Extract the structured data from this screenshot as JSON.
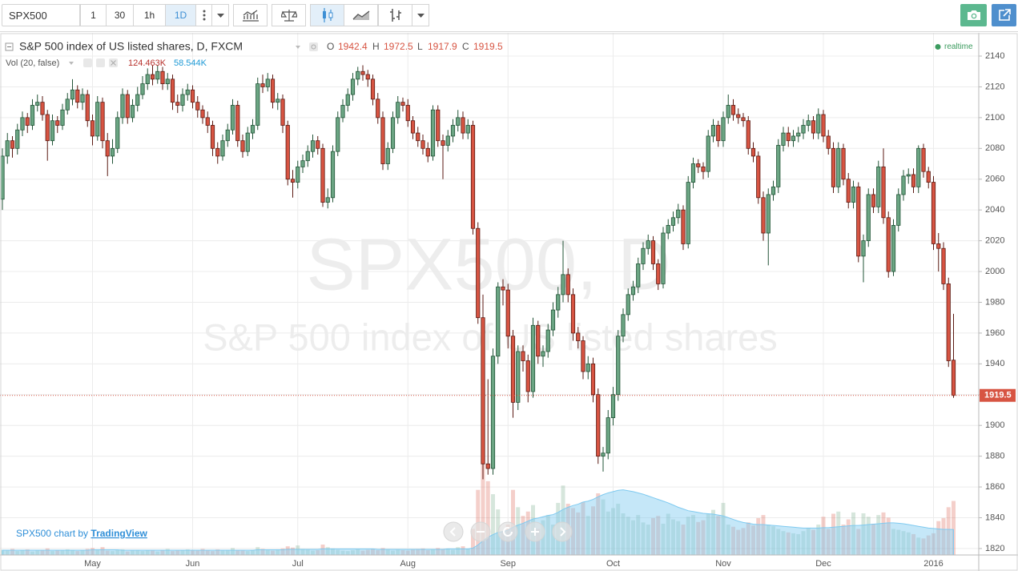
{
  "toolbar": {
    "symbol": "SPX500",
    "intervals": [
      "1",
      "30",
      "1h",
      "1D"
    ],
    "active_interval": "1D"
  },
  "chart_data": {
    "type": "candlestick",
    "title": "S&P 500 index of US listed shares, D, FXCM",
    "ohlc_letters": [
      "O",
      "H",
      "L",
      "C"
    ],
    "status": "realtime",
    "watermark": [
      "SPX500, D",
      "S&P 500 index of US listed shares"
    ],
    "categories": [
      null,
      null,
      null,
      null,
      null,
      null,
      null,
      null,
      null,
      null,
      null,
      null,
      null,
      null,
      null,
      null,
      null,
      null,
      "May",
      null,
      null,
      null,
      null,
      null,
      null,
      null,
      null,
      null,
      null,
      null,
      null,
      null,
      null,
      null,
      null,
      null,
      null,
      null,
      "Jun",
      null,
      null,
      null,
      null,
      null,
      null,
      null,
      null,
      null,
      null,
      null,
      null,
      null,
      null,
      null,
      null,
      null,
      null,
      null,
      null,
      "Jul",
      null,
      null,
      null,
      null,
      null,
      null,
      null,
      null,
      null,
      null,
      null,
      null,
      null,
      null,
      null,
      null,
      null,
      null,
      null,
      null,
      null,
      "Aug",
      null,
      null,
      null,
      null,
      null,
      null,
      null,
      null,
      null,
      null,
      null,
      null,
      null,
      null,
      null,
      null,
      null,
      null,
      null,
      "Sep",
      null,
      null,
      null,
      null,
      null,
      null,
      null,
      null,
      null,
      null,
      null,
      null,
      null,
      null,
      null,
      null,
      null,
      null,
      null,
      null,
      "Oct",
      null,
      null,
      null,
      null,
      null,
      null,
      null,
      null,
      null,
      null,
      null,
      null,
      null,
      null,
      null,
      null,
      null,
      null,
      null,
      null,
      null,
      "Nov",
      null,
      null,
      null,
      null,
      null,
      null,
      null,
      null,
      null,
      null,
      null,
      null,
      null,
      null,
      null,
      null,
      null,
      null,
      null,
      "Dec",
      null,
      null,
      null,
      null,
      null,
      null,
      null,
      null,
      null,
      null,
      null,
      null,
      null,
      null,
      null,
      null,
      null,
      null,
      null,
      null,
      null,
      "2016",
      null,
      null,
      null,
      null
    ],
    "open": [
      2047,
      2075,
      2085,
      2080,
      2092,
      2100,
      2095,
      2108,
      2110,
      2102,
      2085,
      2098,
      2095,
      2105,
      2112,
      2118,
      2110,
      2115,
      2098,
      2088,
      2110,
      2085,
      2075,
      2080,
      2100,
      2115,
      2100,
      2108,
      2115,
      2122,
      2128,
      2125,
      2130,
      2122,
      2125,
      2110,
      2108,
      2115,
      2118,
      2110,
      2105,
      2100,
      2095,
      2080,
      2075,
      2085,
      2092,
      2108,
      2085,
      2078,
      2090,
      2095,
      2122,
      2120,
      2125,
      2110,
      2112,
      2095,
      2060,
      2058,
      2068,
      2072,
      2078,
      2085,
      2080,
      2045,
      2048,
      2078,
      2100,
      2108,
      2115,
      2125,
      2130,
      2128,
      2125,
      2112,
      2100,
      2070,
      2080,
      2100,
      2110,
      2108,
      2098,
      2090,
      2085,
      2080,
      2075,
      2105,
      2085,
      2082,
      2088,
      2095,
      2100,
      2090,
      2095,
      2028,
      1970,
      1875,
      1872,
      1945,
      1990,
      1988,
      1958,
      1915,
      1948,
      1942,
      1922,
      1965,
      1945,
      1948,
      1962,
      1975,
      1985,
      1998,
      1985,
      1960,
      1955,
      1935,
      1940,
      1920,
      1880,
      1882,
      1905,
      1920,
      1958,
      1972,
      1985,
      1990,
      2005,
      2015,
      2020,
      2005,
      1992,
      2025,
      2030,
      2035,
      2040,
      2018,
      2058,
      2070,
      2068,
      2065,
      2088,
      2095,
      2085,
      2100,
      2108,
      2102,
      2100,
      2098,
      2080,
      2075,
      2048,
      2025,
      2050,
      2055,
      2082,
      2090,
      2085,
      2088,
      2090,
      2095,
      2098,
      2090,
      2102,
      2088,
      2080,
      2055,
      2080,
      2060,
      2045,
      2055,
      2010,
      2020,
      2050,
      2042,
      2068,
      2035,
      2000,
      2030,
      2050,
      2062,
      2063,
      2055,
      2080,
      2065,
      2058,
      2018,
      2015,
      1992,
      1942.4
    ],
    "high": [
      2080,
      2090,
      2088,
      2096,
      2104,
      2103,
      2112,
      2115,
      2114,
      2105,
      2102,
      2101,
      2109,
      2116,
      2125,
      2121,
      2119,
      2118,
      2102,
      2114,
      2113,
      2090,
      2086,
      2104,
      2119,
      2118,
      2112,
      2120,
      2127,
      2132,
      2134,
      2134,
      2133,
      2129,
      2128,
      2115,
      2119,
      2122,
      2121,
      2114,
      2108,
      2104,
      2098,
      2084,
      2089,
      2096,
      2112,
      2111,
      2089,
      2094,
      2099,
      2126,
      2128,
      2129,
      2128,
      2116,
      2115,
      2098,
      2066,
      2072,
      2076,
      2082,
      2089,
      2088,
      2083,
      2054,
      2082,
      2104,
      2112,
      2119,
      2129,
      2133,
      2134,
      2131,
      2128,
      2116,
      2104,
      2084,
      2104,
      2114,
      2113,
      2112,
      2101,
      2094,
      2089,
      2084,
      2108,
      2108,
      2089,
      2092,
      2099,
      2105,
      2104,
      2099,
      2098,
      2032,
      1985,
      1930,
      1950,
      1993,
      1995,
      1992,
      1962,
      1952,
      1952,
      1946,
      1970,
      1968,
      1952,
      1966,
      1980,
      1990,
      2020,
      2002,
      1989,
      1964,
      1958,
      1945,
      1944,
      1924,
      1886,
      1910,
      1925,
      1962,
      1976,
      1989,
      1994,
      2009,
      2019,
      2024,
      2023,
      2008,
      2029,
      2034,
      2039,
      2044,
      2043,
      2062,
      2074,
      2073,
      2071,
      2092,
      2099,
      2098,
      2104,
      2115,
      2112,
      2106,
      2103,
      2101,
      2084,
      2078,
      2052,
      2054,
      2059,
      2086,
      2094,
      2094,
      2092,
      2094,
      2099,
      2102,
      2101,
      2106,
      2105,
      2092,
      2084,
      2084,
      2083,
      2064,
      2059,
      2058,
      2024,
      2054,
      2054,
      2072,
      2080,
      2039,
      2034,
      2054,
      2066,
      2067,
      2067,
      2082,
      2083,
      2068,
      2062,
      2025,
      2019,
      1996,
      1972.5
    ],
    "low": [
      2040,
      2070,
      2074,
      2076,
      2088,
      2090,
      2092,
      2104,
      2098,
      2072,
      2082,
      2090,
      2092,
      2102,
      2108,
      2106,
      2105,
      2094,
      2082,
      2085,
      2080,
      2062,
      2070,
      2077,
      2096,
      2096,
      2097,
      2104,
      2112,
      2118,
      2121,
      2122,
      2118,
      2118,
      2105,
      2103,
      2104,
      2111,
      2106,
      2100,
      2096,
      2090,
      2075,
      2070,
      2072,
      2081,
      2089,
      2081,
      2074,
      2075,
      2086,
      2092,
      2116,
      2117,
      2106,
      2105,
      2090,
      2056,
      2048,
      2054,
      2064,
      2068,
      2074,
      2076,
      2042,
      2041,
      2045,
      2075,
      2097,
      2104,
      2111,
      2121,
      2124,
      2120,
      2108,
      2096,
      2066,
      2066,
      2077,
      2096,
      2104,
      2094,
      2086,
      2081,
      2076,
      2071,
      2072,
      2081,
      2060,
      2078,
      2084,
      2091,
      2086,
      2086,
      2024,
      1966,
      1865,
      1868,
      1868,
      1940,
      1978,
      1950,
      1905,
      1910,
      1935,
      1915,
      1918,
      1940,
      1938,
      1944,
      1958,
      1970,
      1980,
      1980,
      1955,
      1950,
      1930,
      1930,
      1915,
      1875,
      1870,
      1878,
      1900,
      1916,
      1954,
      1968,
      1981,
      1986,
      2001,
      2011,
      2001,
      1988,
      1989,
      2021,
      2026,
      2031,
      2014,
      2015,
      2054,
      2064,
      2060,
      2061,
      2084,
      2081,
      2081,
      2096,
      2098,
      2096,
      2094,
      2076,
      2071,
      2044,
      2020,
      2004,
      2046,
      2051,
      2078,
      2081,
      2081,
      2084,
      2086,
      2091,
      2086,
      2086,
      2084,
      2076,
      2051,
      2051,
      2056,
      2041,
      2041,
      2006,
      1993,
      2016,
      2038,
      2038,
      2031,
      1996,
      1997,
      2026,
      2046,
      2057,
      2051,
      2051,
      2061,
      2054,
      2014,
      2000,
      1988,
      1938,
      1917.9
    ],
    "close": [
      2075,
      2085,
      2080,
      2092,
      2100,
      2095,
      2108,
      2110,
      2102,
      2085,
      2098,
      2095,
      2105,
      2112,
      2118,
      2110,
      2115,
      2098,
      2088,
      2110,
      2085,
      2075,
      2080,
      2100,
      2115,
      2100,
      2108,
      2115,
      2122,
      2128,
      2125,
      2130,
      2122,
      2125,
      2110,
      2108,
      2115,
      2118,
      2110,
      2105,
      2100,
      2095,
      2080,
      2075,
      2085,
      2092,
      2108,
      2085,
      2078,
      2090,
      2095,
      2122,
      2120,
      2125,
      2110,
      2112,
      2095,
      2060,
      2058,
      2068,
      2072,
      2078,
      2085,
      2080,
      2045,
      2048,
      2078,
      2100,
      2108,
      2115,
      2125,
      2130,
      2128,
      2125,
      2112,
      2100,
      2070,
      2080,
      2100,
      2110,
      2108,
      2098,
      2090,
      2085,
      2080,
      2075,
      2105,
      2085,
      2082,
      2088,
      2095,
      2100,
      2090,
      2095,
      2028,
      1970,
      1875,
      1872,
      1945,
      1990,
      1988,
      1958,
      1915,
      1948,
      1942,
      1922,
      1965,
      1945,
      1948,
      1962,
      1975,
      1985,
      1998,
      1985,
      1960,
      1955,
      1935,
      1940,
      1920,
      1880,
      1882,
      1905,
      1920,
      1958,
      1972,
      1985,
      1990,
      2005,
      2015,
      2020,
      2005,
      1992,
      2025,
      2030,
      2035,
      2040,
      2018,
      2058,
      2070,
      2068,
      2065,
      2088,
      2095,
      2085,
      2100,
      2108,
      2102,
      2100,
      2098,
      2080,
      2075,
      2048,
      2025,
      2050,
      2055,
      2082,
      2090,
      2085,
      2088,
      2090,
      2095,
      2098,
      2090,
      2102,
      2088,
      2080,
      2055,
      2080,
      2060,
      2045,
      2055,
      2010,
      2020,
      2050,
      2042,
      2068,
      2035,
      2000,
      2030,
      2050,
      2062,
      2063,
      2055,
      2080,
      2065,
      2058,
      2018,
      2015,
      1992,
      1942,
      1919.5
    ],
    "up_color": "#6ba583",
    "up_border": "#225437",
    "down_color": "#d75442",
    "down_border": "#5b1a13",
    "ylim": [
      1815.8,
      2155.1
    ],
    "yticks": [
      1820,
      1840,
      1860,
      1880,
      1900,
      1920,
      1940,
      1960,
      1980,
      2000,
      2020,
      2040,
      2060,
      2080,
      2100,
      2120,
      2140
    ],
    "grid": true,
    "volume": {
      "title": "Vol (20, false)",
      "values": [
        12,
        10,
        14,
        9,
        11,
        13,
        8,
        10,
        12,
        15,
        9,
        11,
        10,
        13,
        12,
        9,
        11,
        14,
        16,
        12,
        18,
        10,
        9,
        11,
        13,
        8,
        10,
        12,
        9,
        11,
        10,
        8,
        12,
        14,
        9,
        10,
        11,
        13,
        12,
        10,
        14,
        11,
        9,
        13,
        10,
        12,
        16,
        11,
        10,
        9,
        12,
        18,
        14,
        11,
        10,
        13,
        15,
        20,
        17,
        22,
        14,
        12,
        10,
        11,
        24,
        18,
        15,
        12,
        10,
        9,
        11,
        13,
        10,
        12,
        14,
        11,
        16,
        13,
        10,
        12,
        11,
        10,
        12,
        14,
        15,
        11,
        13,
        16,
        14,
        15,
        12,
        18,
        20,
        14,
        60,
        150,
        225,
        170,
        140,
        105,
        55,
        70,
        150,
        110,
        90,
        100,
        115,
        60,
        80,
        92,
        70,
        120,
        160,
        118,
        108,
        98,
        122,
        90,
        112,
        142,
        128,
        100,
        108,
        118,
        96,
        88,
        80,
        92,
        75,
        70,
        85,
        90,
        72,
        95,
        82,
        78,
        70,
        88,
        92,
        76,
        80,
        95,
        104,
        90,
        120,
        70,
        65,
        58,
        62,
        75,
        68,
        85,
        92,
        70,
        66,
        60,
        55,
        52,
        50,
        48,
        55,
        62,
        58,
        70,
        88,
        60,
        95,
        100,
        70,
        82,
        98,
        60,
        96,
        88,
        72,
        92,
        98,
        86,
        60,
        58,
        55,
        52,
        48,
        40,
        38,
        45,
        50,
        78,
        85,
        110,
        124.463
      ],
      "ma": [
        11,
        11,
        11,
        11,
        11,
        11,
        11,
        11,
        11,
        11,
        11,
        11,
        11,
        11,
        11,
        11,
        11,
        11,
        12,
        12,
        12,
        12,
        12,
        12,
        11,
        11,
        11,
        11,
        11,
        11,
        11,
        11,
        11,
        11,
        11,
        11,
        11,
        11,
        11,
        11,
        11,
        11,
        11,
        11,
        11,
        11,
        11,
        11,
        11,
        11,
        11,
        12,
        12,
        12,
        12,
        12,
        12,
        13,
        13,
        13,
        13,
        13,
        13,
        13,
        14,
        14,
        14,
        14,
        14,
        14,
        14,
        14,
        14,
        14,
        14,
        13,
        13,
        13,
        13,
        13,
        13,
        13,
        13,
        13,
        13,
        13,
        13,
        13,
        13,
        14,
        14,
        14,
        14,
        14,
        16,
        23,
        33,
        41,
        47,
        52,
        54,
        57,
        64,
        69,
        73,
        78,
        83,
        85,
        88,
        91,
        93,
        98,
        105,
        110,
        114,
        117,
        122,
        124,
        128,
        134,
        139,
        143,
        146,
        149,
        150,
        148,
        146,
        143,
        140,
        136,
        132,
        128,
        124,
        120,
        115,
        110,
        106,
        102,
        100,
        98,
        96,
        95,
        94,
        92,
        90,
        86,
        82,
        78,
        75,
        73,
        71,
        70,
        70,
        69,
        68,
        67,
        66,
        65,
        64,
        63,
        62,
        62,
        62,
        62,
        63,
        63,
        64,
        65,
        66,
        67,
        68,
        68,
        69,
        70,
        71,
        72,
        73,
        74,
        74,
        73,
        72,
        70,
        68,
        66,
        64,
        62,
        61,
        60,
        59,
        59,
        58.544
      ],
      "last_value_label": "124.463K",
      "last_ma_label": "58.544K",
      "ma_color": "#7fcaf0"
    }
  },
  "footer": {
    "prefix": "SPX500 chart by",
    "brand": "TradingView"
  }
}
